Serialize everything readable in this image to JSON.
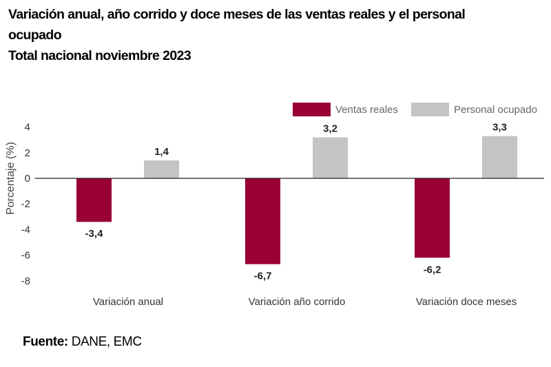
{
  "header": {
    "title_line1": "Variación anual, año corrido y doce meses de las ventas reales y el personal",
    "title_line2": "ocupado",
    "title_line3": "Total nacional noviembre 2023"
  },
  "footer": {
    "source_label": "Fuente:",
    "source_value": " DANE, EMC"
  },
  "chart_data": {
    "type": "bar",
    "title": "Variación anual, año corrido y doce meses de las ventas reales y el personal ocupado. Total nacional noviembre 2023",
    "xlabel": "",
    "ylabel": "Porcentaje (%)",
    "ylim": [
      -8,
      4
    ],
    "yticks": [
      4,
      2,
      0,
      -2,
      -4,
      -6,
      -8
    ],
    "categories": [
      "Variación anual",
      "Variación año corrido",
      "Variación doce meses"
    ],
    "series": [
      {
        "name": "Ventas reales",
        "color": "#990033",
        "values": [
          -3.4,
          -6.7,
          -6.2
        ],
        "labels": [
          "-3,4",
          "-6,7",
          "-6,2"
        ]
      },
      {
        "name": "Personal ocupado",
        "color": "#c4c4c4",
        "values": [
          1.4,
          3.2,
          3.3
        ],
        "labels": [
          "1,4",
          "3,2",
          "3,3"
        ]
      }
    ],
    "legend": "top-right",
    "grid": false,
    "zero_line": true
  }
}
